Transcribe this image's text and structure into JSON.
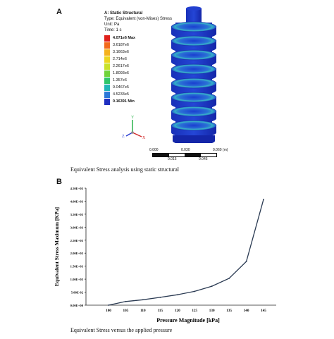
{
  "panel_a": {
    "letter": "A",
    "legend": {
      "title": "A: Static Structural",
      "type": "Type: Equivalent (von-Mises) Stress",
      "unit": "Unit: Pa",
      "time": "Time: 1 s",
      "entries": [
        {
          "label": "4.071e6 Max",
          "color": "#e0211b",
          "bold": true
        },
        {
          "label": "3.6187e6",
          "color": "#f26a1b"
        },
        {
          "label": "3.1663e6",
          "color": "#f5b21e"
        },
        {
          "label": "2.714e6",
          "color": "#ecd61f"
        },
        {
          "label": "2.2617e6",
          "color": "#c9e22a"
        },
        {
          "label": "1.8093e6",
          "color": "#6fd33a"
        },
        {
          "label": "1.357e6",
          "color": "#2fc66a"
        },
        {
          "label": "9.0467e5",
          "color": "#21b6b6"
        },
        {
          "label": "4.5233e5",
          "color": "#2b78d8"
        },
        {
          "label": "0.16391 Min",
          "color": "#1f2fc0",
          "bold": true
        }
      ]
    },
    "scale_bar": {
      "top_labels": [
        "0.000",
        "0.030",
        "0.060 (m)"
      ],
      "bottom_labels": [
        "0.015",
        "0.045"
      ]
    },
    "triad": {
      "y": "Y",
      "x": "X",
      "z": "Z"
    },
    "caption": "Equivalent Stress analysis using static structural"
  },
  "panel_b": {
    "letter": "B",
    "caption": "Equivalent Stress versus the applied pressure"
  },
  "colors": {
    "line": "#2a3a52",
    "model_base": "#1d35c4"
  },
  "chart_data": {
    "type": "line",
    "title": "",
    "xlabel": "Pressure  Magnitude [kPa]",
    "ylabel": "Equivalent Stress Maximum [KPa]",
    "x": [
      100,
      105,
      110,
      115,
      120,
      125,
      130,
      135,
      140,
      145
    ],
    "series": [
      {
        "values": [
          0.0,
          0.14,
          0.21,
          0.3,
          0.4,
          0.53,
          0.73,
          1.03,
          1.68,
          4.07
        ]
      }
    ],
    "xlim": [
      100,
      145
    ],
    "ylim": [
      0,
      4.5
    ],
    "x_ticks": [
      "100",
      "105",
      "110",
      "115",
      "120",
      "125",
      "130",
      "135",
      "140",
      "145"
    ],
    "y_ticks": [
      "0.00E+00",
      "5.00E-02",
      "1.00E+03",
      "1.50E+03",
      "2.00E+03",
      "2.50E+03",
      "3.00E+03",
      "3.50E+03",
      "4.00E+03",
      "4.50E+03"
    ],
    "grid": false
  }
}
